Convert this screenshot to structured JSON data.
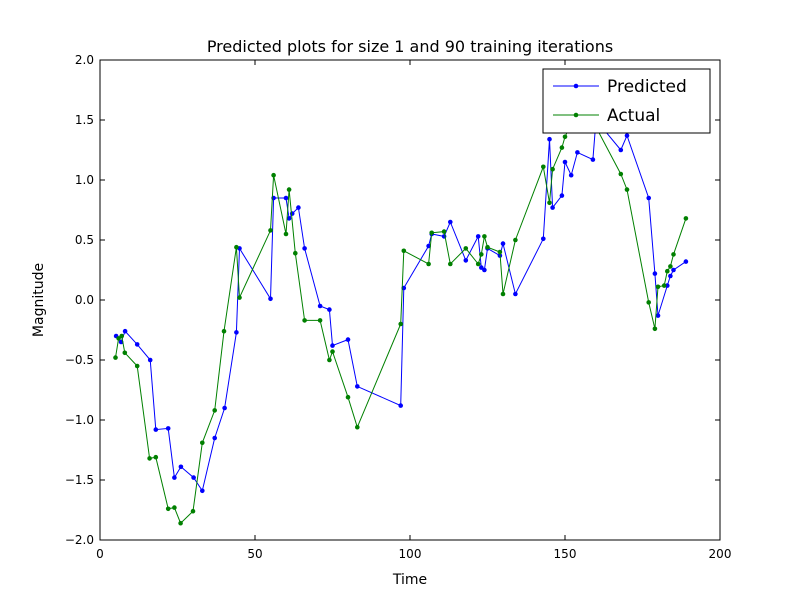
{
  "chart_data": {
    "type": "line",
    "title": "Predicted plots for size 1 and 90 training iterations",
    "xlabel": "Time",
    "ylabel": "Magnitude",
    "xlim": [
      0,
      200
    ],
    "ylim": [
      -2.0,
      2.0
    ],
    "xticks": [
      0,
      50,
      100,
      150,
      200
    ],
    "xtick_labels": [
      "0",
      "50",
      "100",
      "150",
      "200"
    ],
    "yticks": [
      -2.0,
      -1.5,
      -1.0,
      -0.5,
      0.0,
      0.5,
      1.0,
      1.5,
      2.0
    ],
    "ytick_labels": [
      "−2.0",
      "−1.5",
      "−1.0",
      "−0.5",
      "0.0",
      "0.5",
      "1.0",
      "1.5",
      "2.0"
    ],
    "grid": false,
    "legend_position": "top-right",
    "series": [
      {
        "name": "Predicted",
        "color": "#0000ff",
        "x": [
          5.2,
          6.8,
          8.1,
          12.0,
          16.2,
          18.0,
          22.0,
          24.0,
          26.1,
          30.2,
          33.0,
          37.0,
          40.2,
          44.0,
          45.0,
          55.0,
          56.0,
          60.0,
          61.0,
          62.0,
          64.0,
          66.0,
          71.0,
          74.0,
          75.0,
          80.0,
          83.0,
          97.0,
          98.0,
          106.0,
          107.0,
          111.0,
          113.0,
          118.0,
          122.0,
          123.0,
          124.0,
          125.0,
          129.0,
          130.0,
          134.0,
          143.0,
          145.0,
          146.0,
          149.0,
          150.0,
          152.0,
          154.0,
          159.0,
          160.0,
          168.0,
          170.0,
          177.0,
          179.0,
          180.0,
          183.0,
          184.0,
          185.0,
          189.0
        ],
        "values": [
          -0.3,
          -0.35,
          -0.26,
          -0.37,
          -0.5,
          -1.08,
          -1.07,
          -1.48,
          -1.39,
          -1.48,
          -1.59,
          -1.15,
          -0.9,
          -0.27,
          0.43,
          0.01,
          0.85,
          0.85,
          0.68,
          0.72,
          0.77,
          0.43,
          -0.05,
          -0.08,
          -0.38,
          -0.33,
          -0.72,
          -0.88,
          0.1,
          0.45,
          0.55,
          0.53,
          0.65,
          0.33,
          0.53,
          0.27,
          0.25,
          0.43,
          0.37,
          0.47,
          0.05,
          0.51,
          1.34,
          0.77,
          0.87,
          1.15,
          1.04,
          1.23,
          1.17,
          1.5,
          1.25,
          1.37,
          0.85,
          0.22,
          -0.13,
          0.12,
          0.2,
          0.25,
          0.32
        ]
      },
      {
        "name": "Actual",
        "color": "#008000",
        "x": [
          5.0,
          6.0,
          7.0,
          8.0,
          12.0,
          16.0,
          18.0,
          22.0,
          24.0,
          26.0,
          30.0,
          33.0,
          37.0,
          40.0,
          44.0,
          45.0,
          55.0,
          56.0,
          60.0,
          61.0,
          63.0,
          66.0,
          71.0,
          74.0,
          75.0,
          80.0,
          83.0,
          97.0,
          98.0,
          106.0,
          107.0,
          111.0,
          113.0,
          118.0,
          122.0,
          123.0,
          124.0,
          125.0,
          129.0,
          130.0,
          134.0,
          143.0,
          145.0,
          146.0,
          149.0,
          150.0,
          152.0,
          159.0,
          168.0,
          170.0,
          177.0,
          179.0,
          180.0,
          182.0,
          183.0,
          184.0,
          185.0,
          189.0
        ],
        "values": [
          -0.48,
          -0.32,
          -0.3,
          -0.44,
          -0.55,
          -1.32,
          -1.31,
          -1.74,
          -1.73,
          -1.86,
          -1.76,
          -1.19,
          -0.92,
          -0.26,
          0.44,
          0.02,
          0.58,
          1.04,
          0.55,
          0.92,
          0.39,
          -0.17,
          -0.17,
          -0.5,
          -0.43,
          -0.81,
          -1.06,
          -0.2,
          0.41,
          0.3,
          0.56,
          0.57,
          0.3,
          0.43,
          0.3,
          0.38,
          0.53,
          0.44,
          0.4,
          0.05,
          0.5,
          1.11,
          0.81,
          1.09,
          1.27,
          1.36,
          1.47,
          1.49,
          1.05,
          0.92,
          -0.02,
          -0.24,
          0.11,
          0.12,
          0.24,
          0.28,
          0.38,
          0.68
        ]
      }
    ]
  }
}
